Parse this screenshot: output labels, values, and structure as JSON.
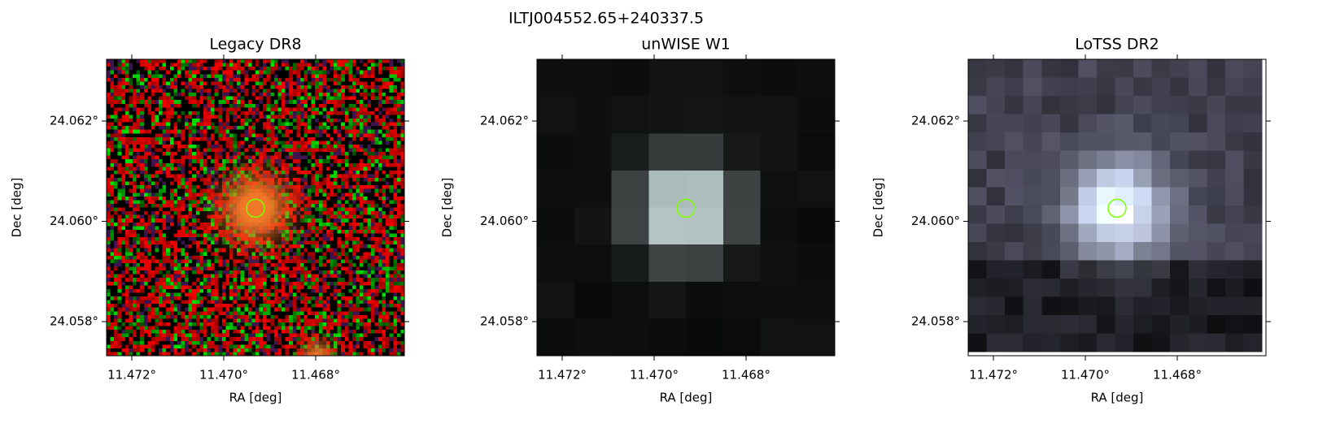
{
  "title": "ILTJ004552.65+240337.5",
  "chart_data": [
    {
      "type": "image",
      "title": "Legacy DR8",
      "xlabel": "RA [deg]",
      "ylabel": "Dec [deg]",
      "xlim": [
        11.47255,
        11.46607
      ],
      "ylim": [
        24.05732,
        24.06323
      ],
      "xticks": [
        {
          "value": 11.472,
          "label": "11.472°"
        },
        {
          "value": 11.47,
          "label": "11.470°"
        },
        {
          "value": 11.468,
          "label": "11.468°"
        }
      ],
      "yticks": [
        {
          "value": 24.058,
          "label": "24.058°"
        },
        {
          "value": 24.06,
          "label": "24.060°"
        },
        {
          "value": 24.062,
          "label": "24.062°"
        }
      ],
      "marker": {
        "x": 11.46931,
        "y": 24.06026,
        "color": "#7fff00"
      }
    },
    {
      "type": "image",
      "title": "unWISE W1",
      "xlabel": "RA [deg]",
      "ylabel": "Dec [deg]",
      "xlim": [
        11.47255,
        11.46607
      ],
      "ylim": [
        24.05732,
        24.06323
      ],
      "xticks": [
        {
          "value": 11.472,
          "label": "11.472°"
        },
        {
          "value": 11.47,
          "label": "11.470°"
        },
        {
          "value": 11.468,
          "label": "11.468°"
        }
      ],
      "yticks": [
        {
          "value": 24.058,
          "label": "24.058°"
        },
        {
          "value": 24.06,
          "label": "24.060°"
        },
        {
          "value": 24.062,
          "label": "24.062°"
        }
      ],
      "marker": {
        "x": 11.46931,
        "y": 24.06026,
        "color": "#7fff00"
      }
    },
    {
      "type": "image",
      "title": "LoTSS DR2",
      "xlabel": "RA [deg]",
      "ylabel": "Dec [deg]",
      "xlim": [
        11.47255,
        11.46607
      ],
      "ylim": [
        24.05732,
        24.06323
      ],
      "xticks": [
        {
          "value": 11.472,
          "label": "11.472°"
        },
        {
          "value": 11.47,
          "label": "11.470°"
        },
        {
          "value": 11.468,
          "label": "11.468°"
        }
      ],
      "yticks": [
        {
          "value": 24.058,
          "label": "24.058°"
        },
        {
          "value": 24.06,
          "label": "24.060°"
        },
        {
          "value": 24.062,
          "label": "24.062°"
        }
      ],
      "marker": {
        "x": 11.46931,
        "y": 24.06026,
        "color": "#7fff00"
      }
    }
  ]
}
